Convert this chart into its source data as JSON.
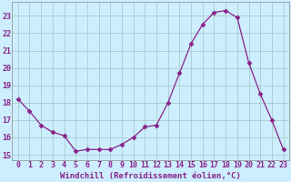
{
  "x": [
    0,
    1,
    2,
    3,
    4,
    5,
    6,
    7,
    8,
    9,
    10,
    11,
    12,
    13,
    14,
    15,
    16,
    17,
    18,
    19,
    20,
    21,
    22,
    23
  ],
  "y": [
    18.2,
    17.5,
    16.7,
    16.3,
    16.1,
    15.2,
    15.3,
    15.3,
    15.3,
    15.6,
    16.0,
    16.6,
    16.7,
    18.0,
    19.7,
    21.4,
    22.5,
    23.2,
    23.3,
    22.9,
    20.3,
    18.5,
    17.0,
    15.3
  ],
  "line_color": "#882288",
  "marker": "D",
  "marker_size": 2.5,
  "bg_color": "#cceeff",
  "grid_color": "#aacccc",
  "xlabel": "Windchill (Refroidissement éolien,°C)",
  "ylabel_ticks": [
    15,
    16,
    17,
    18,
    19,
    20,
    21,
    22,
    23
  ],
  "xtick_labels": [
    "0",
    "1",
    "2",
    "3",
    "4",
    "5",
    "6",
    "7",
    "8",
    "9",
    "10",
    "11",
    "12",
    "13",
    "14",
    "15",
    "16",
    "17",
    "18",
    "19",
    "20",
    "21",
    "22",
    "23"
  ],
  "ylim": [
    14.7,
    23.8
  ],
  "xlim": [
    -0.5,
    23.5
  ],
  "xlabel_fontsize": 6.5,
  "tick_fontsize": 6.0,
  "label_color": "#882288"
}
